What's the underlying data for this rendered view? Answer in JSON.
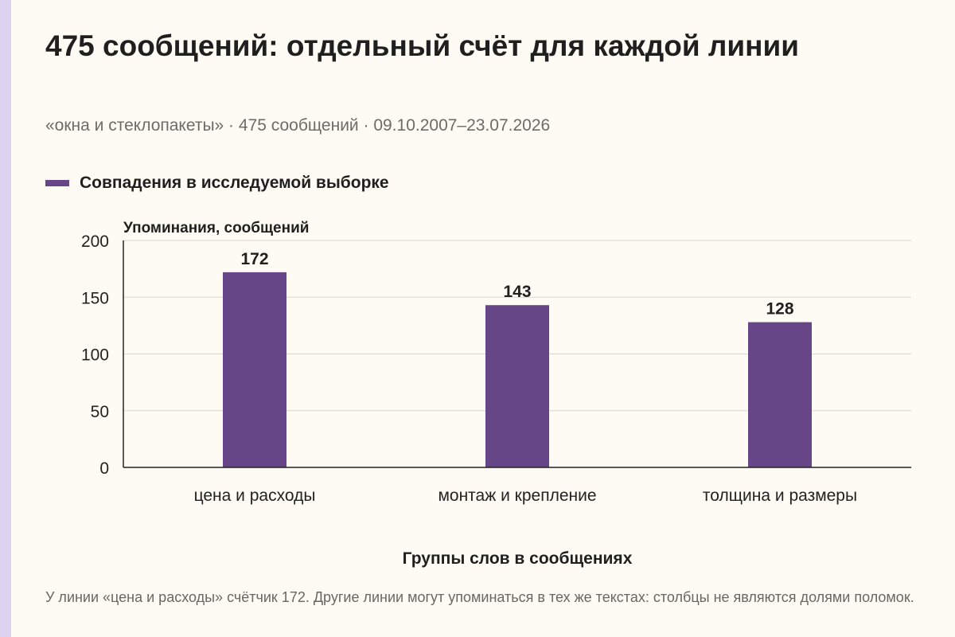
{
  "title": "475 сообщений: отдельный счёт для каждой линии",
  "subtitle": "«окна и стеклопакеты» · 475 сообщений · 09.10.2007–23.07.2026",
  "legend": {
    "label": "Совпадения в исследуемой выборке",
    "color": "#664687"
  },
  "footnote": "У линии «цена и расходы» счётчик 172. Другие линии могут упоминаться в тех же текстах: столбцы не являются долями поломок.",
  "chart_data": {
    "type": "bar",
    "categories": [
      "цена и расходы",
      "монтаж и крепление",
      "толщина и размеры"
    ],
    "series": [
      {
        "name": "Совпадения в исследуемой выборке",
        "values": [
          172,
          143,
          128
        ]
      }
    ],
    "data_labels": [
      "172",
      "143",
      "128"
    ],
    "ylabel": "Упоминания, сообщений",
    "xlabel": "Группы слов в сообщениях",
    "ylim": [
      0,
      200
    ],
    "yticks": [
      0,
      50,
      100,
      150,
      200
    ],
    "grid": true,
    "legend_position": "top-left",
    "bar_color": "#664687"
  }
}
